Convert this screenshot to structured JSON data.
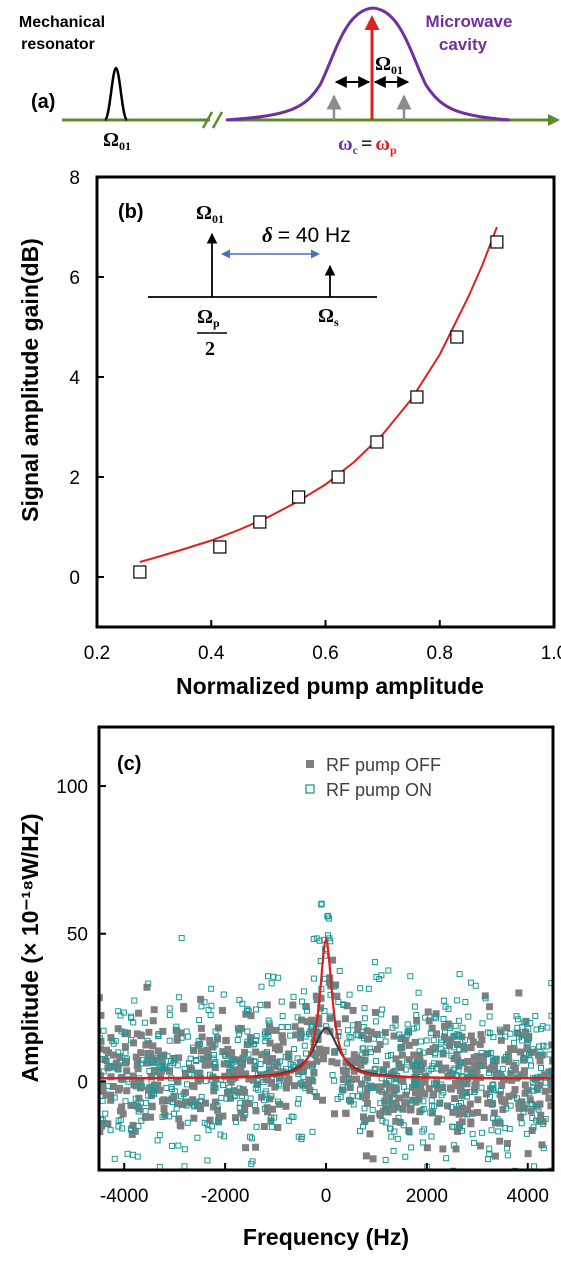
{
  "panel_a": {
    "label": "(a)",
    "resonator_label_line1": "Mechanical",
    "resonator_label_line2": "resonator",
    "cavity_label_line1": "Microwave",
    "cavity_label_line2": "cavity",
    "omega01": "Ω",
    "omega01_sub": "01",
    "omega01_right": "Ω",
    "omega01_right_sub": "01",
    "wc": "ω",
    "wc_sub": "c",
    "equals": "=",
    "wp": "ω",
    "wp_sub": "p",
    "colors": {
      "line": "#5b8c2a",
      "cavity": "#7030a0",
      "pump": "#e0201f",
      "gray": "#8c8c8c"
    }
  },
  "panel_b": {
    "label": "(b)",
    "inset": {
      "omega01": "Ω",
      "omega01_sub": "01",
      "delta": "δ",
      "delta_value": "= 40 Hz",
      "omega_p": "Ω",
      "omega_p_sub": "p",
      "two": "2",
      "omega_s": "Ω",
      "omega_s_sub": "s"
    }
  },
  "panel_c": {
    "label": "(c)",
    "legend_off": "RF pump OFF",
    "legend_on": "RF pump ON"
  },
  "chart_data": [
    {
      "type": "scatter",
      "panel": "b",
      "xlabel": "Normalized pump amplitude",
      "ylabel": "Signal amplitude gain(dB)",
      "xlim": [
        0.2,
        1.0
      ],
      "ylim": [
        -1,
        8
      ],
      "xticks": [
        0.2,
        0.4,
        0.6,
        0.8,
        1.0
      ],
      "xtick_labels": [
        "0.2",
        "0.4",
        "0.6",
        "0.8",
        "1.0"
      ],
      "yticks": [
        0,
        2,
        4,
        6,
        8
      ],
      "ytick_labels": [
        "0",
        "2",
        "4",
        "6",
        "8"
      ],
      "series": [
        {
          "marker": "open-square",
          "color": "#000000",
          "x": [
            0.275,
            0.415,
            0.485,
            0.553,
            0.622,
            0.69,
            0.76,
            0.83,
            0.9
          ],
          "y": [
            0.1,
            0.6,
            1.1,
            1.6,
            2.0,
            2.7,
            3.6,
            4.8,
            6.7
          ]
        },
        {
          "marker": "line",
          "color": "#e0201f",
          "x": [
            0.275,
            0.3,
            0.35,
            0.4,
            0.45,
            0.5,
            0.55,
            0.6,
            0.65,
            0.7,
            0.75,
            0.8,
            0.85,
            0.875,
            0.9
          ],
          "y": [
            0.3,
            0.38,
            0.55,
            0.73,
            0.95,
            1.2,
            1.5,
            1.85,
            2.3,
            2.85,
            3.55,
            4.45,
            5.6,
            6.25,
            7.0
          ]
        }
      ]
    },
    {
      "type": "scatter",
      "panel": "c",
      "xlabel": "Frequency (Hz)",
      "ylabel": "Amplitude (× 10⁻¹⁸W/HZ)",
      "xlim": [
        -4500,
        4500
      ],
      "ylim": [
        -30,
        120
      ],
      "xticks": [
        -4000,
        -2000,
        0,
        2000,
        4000
      ],
      "xtick_labels": [
        "-4000",
        "-2000",
        "0",
        "2000",
        "4000"
      ],
      "yticks": [
        0,
        50,
        100
      ],
      "ytick_labels": [
        "0",
        "50",
        "100"
      ],
      "series": [
        {
          "name": "RF pump OFF",
          "marker": "filled-square",
          "color": "#808080",
          "noise_sd": 10,
          "npoints": 700,
          "lorentzian": {
            "baseline": 1,
            "peak": 17,
            "center": 0,
            "half_width": 300
          }
        },
        {
          "name": "RF pump ON",
          "marker": "open-square",
          "color": "#1a9a9a",
          "noise_sd": 15,
          "npoints": 700,
          "lorentzian": {
            "baseline": 1,
            "peak": 47,
            "center": 0,
            "half_width": 150
          }
        }
      ]
    }
  ]
}
